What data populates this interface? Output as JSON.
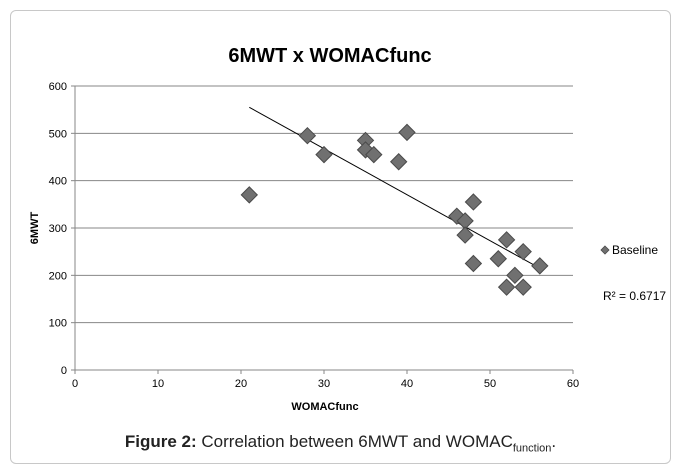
{
  "chart_data": {
    "type": "scatter",
    "title": "6MWT x WOMACfunc",
    "xlabel": "WOMACfunc",
    "ylabel": "6MWT",
    "xlim": [
      0,
      60
    ],
    "ylim": [
      0,
      600
    ],
    "x_ticks": [
      "0",
      "10",
      "20",
      "30",
      "40",
      "50",
      "60"
    ],
    "y_ticks": [
      "0",
      "100",
      "200",
      "300",
      "400",
      "500",
      "600"
    ],
    "grid": "horizontal",
    "legend_position": "right",
    "series": [
      {
        "name": "Baseline",
        "color": "#707070",
        "marker": "diamond",
        "points": [
          [
            21,
            370
          ],
          [
            28,
            495
          ],
          [
            30,
            455
          ],
          [
            35,
            485
          ],
          [
            35,
            465
          ],
          [
            36,
            455
          ],
          [
            39,
            440
          ],
          [
            40,
            502
          ],
          [
            46,
            325
          ],
          [
            47,
            315
          ],
          [
            47,
            285
          ],
          [
            48,
            355
          ],
          [
            48,
            225
          ],
          [
            51,
            235
          ],
          [
            52,
            275
          ],
          [
            52,
            175
          ],
          [
            53,
            200
          ],
          [
            54,
            250
          ],
          [
            54,
            175
          ],
          [
            56,
            220
          ]
        ]
      }
    ],
    "trendline": {
      "type": "linear",
      "x_start": 21,
      "y_start": 555,
      "x_end": 56,
      "y_end": 215,
      "r_squared_label": "R² = 0.6717"
    }
  },
  "caption": {
    "label": "Figure 2:",
    "text": " Correlation between 6MWT and WOMAC",
    "subscript": "function",
    "suffix": "."
  }
}
